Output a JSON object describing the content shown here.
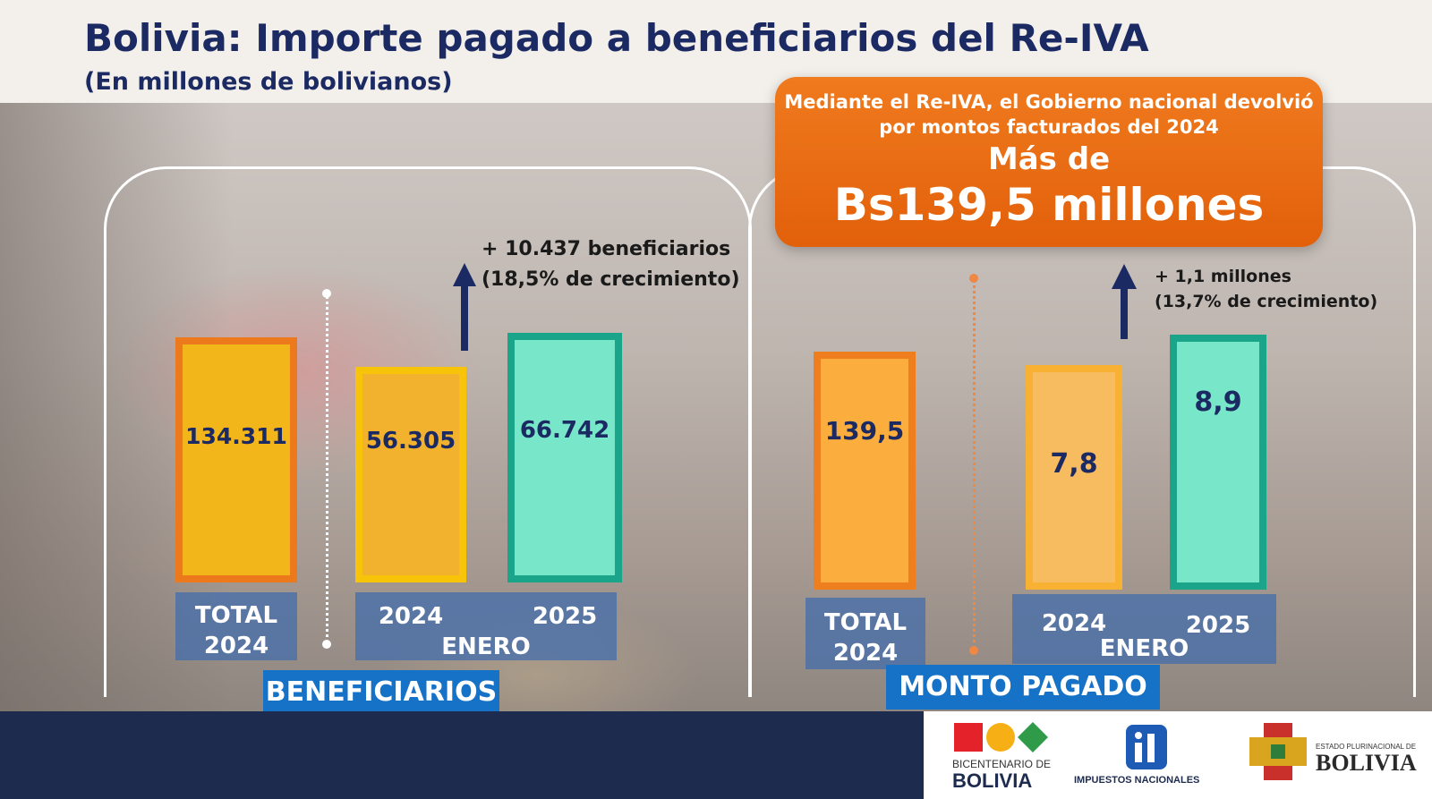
{
  "header": {
    "title": "Bolivia: Importe pagado a beneficiarios del Re-IVA",
    "subtitle": "(En millones de bolivianos)"
  },
  "callout": {
    "line1": "Mediante el Re-IVA, el Gobierno nacional devolvió",
    "line2": "por montos facturados del 2024",
    "line3": "Más de",
    "line4": "Bs139,5 millones"
  },
  "chart_data": [
    {
      "type": "bar",
      "section_label": "BENEFICIARIOS",
      "categories": [
        "TOTAL 2024",
        "ENERO 2024",
        "ENERO 2025"
      ],
      "category_labels": {
        "total_line1": "TOTAL",
        "total_line2": "2024",
        "y2024": "2024",
        "y2025": "2025",
        "group": "ENERO"
      },
      "values": [
        134311,
        56305,
        66742
      ],
      "value_labels": [
        "134.311",
        "56.305",
        "66.742"
      ],
      "colors": {
        "total": "#f2b51a",
        "total_border": "#ec7a1c",
        "y2024": "#f2b22d",
        "y2024_border": "#f8c40a",
        "y2025": "#78e6c8",
        "y2025_border": "#1aa48a"
      },
      "annotation": {
        "line1": "+ 10.437 beneficiarios",
        "line2": "(18,5%  de crecimiento)"
      }
    },
    {
      "type": "bar",
      "section_label": "MONTO PAGADO",
      "categories": [
        "TOTAL 2024",
        "ENERO 2024",
        "ENERO 2025"
      ],
      "category_labels": {
        "total_line1": "TOTAL",
        "total_line2": "2024",
        "y2024": "2024",
        "y2025": "2025",
        "group": "ENERO"
      },
      "values": [
        139.5,
        7.8,
        8.9
      ],
      "value_labels": [
        "139,5",
        "7,8",
        "8,9"
      ],
      "colors": {
        "total": "#fbad3e",
        "total_border": "#ee7e1e",
        "y2024": "#f7bb60",
        "y2024_border": "#f8b133",
        "y2025": "#78e6c8",
        "y2025_border": "#1aa48a"
      },
      "annotation": {
        "line1": "+ 1,1 millones",
        "line2": "(13,7%  de crecimiento)"
      }
    }
  ],
  "footer": {
    "logo1_line1": "BICENTENARIO DE",
    "logo1_line2": "BOLIVIA",
    "logo2": "IMPUESTOS NACIONALES",
    "logo3_line1": "ESTADO PLURINACIONAL DE",
    "logo3_line2": "BOLIVIA"
  }
}
